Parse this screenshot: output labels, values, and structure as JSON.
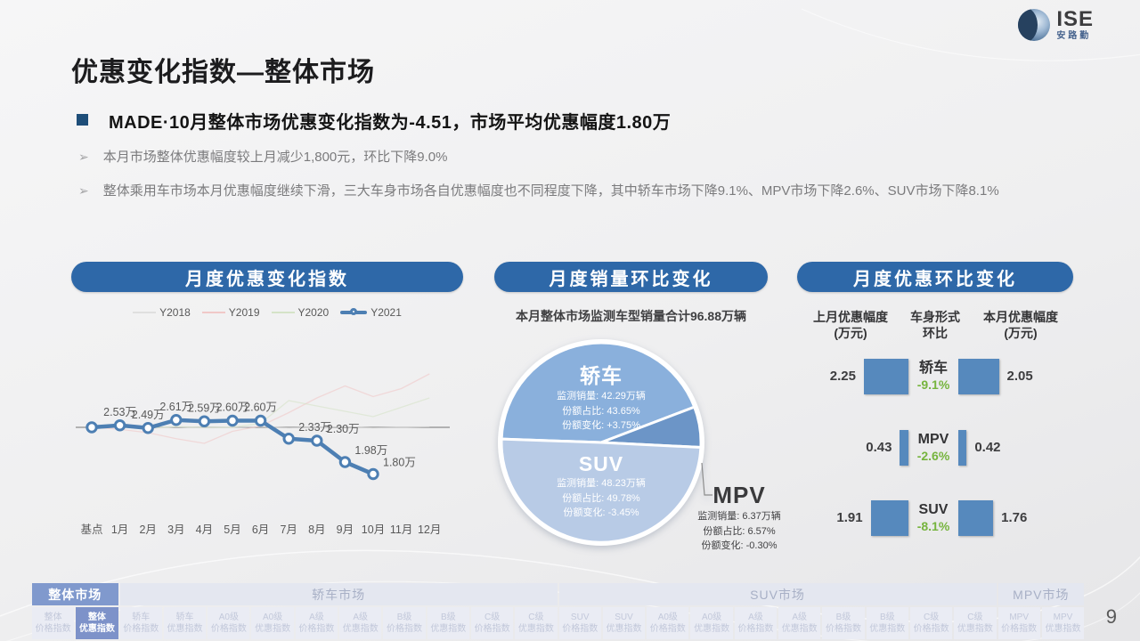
{
  "logo": {
    "text": "ISE",
    "subtext": "安路勤"
  },
  "slide": {
    "page_number": "9"
  },
  "header": {
    "title": "优惠变化指数—整体市场",
    "key_point": "MADE·10月整体市场优惠变化指数为-4.51，市场平均优惠幅度1.80万",
    "bullets": [
      "本月市场整体优惠幅度较上月减少1,800元，环比下降9.0%",
      "整体乘用车市场本月优惠幅度继续下滑，三大车身市场各自优惠幅度也不同程度下降，其中轿车市场下降9.1%、MPV市场下降2.6%、SUV市场下降8.1%"
    ]
  },
  "chart_data": [
    {
      "type": "line",
      "title": "月度优惠变化指数",
      "x": [
        "基点",
        "1月",
        "2月",
        "3月",
        "4月",
        "5月",
        "6月",
        "7月",
        "8月",
        "9月",
        "10月",
        "11月",
        "12月"
      ],
      "unit": "万",
      "baseline_value": 2.5,
      "series": [
        {
          "name": "Y2018",
          "color": "#dfdfdf",
          "values": [
            2.5,
            2.52,
            2.48,
            2.51,
            2.49,
            2.5,
            2.51,
            2.49,
            2.5,
            2.51,
            2.49,
            2.5,
            2.51
          ]
        },
        {
          "name": "Y2019",
          "color": "#f0c8c8",
          "values": [
            2.5,
            2.47,
            2.42,
            2.33,
            2.26,
            2.44,
            2.52,
            2.72,
            2.94,
            3.12,
            2.96,
            3.08,
            3.3
          ]
        },
        {
          "name": "Y2020",
          "color": "#d5e3c8",
          "values": [
            2.5,
            2.5,
            2.49,
            2.51,
            2.5,
            2.5,
            2.56,
            2.9,
            2.82,
            2.74,
            2.66,
            2.8,
            2.94
          ]
        },
        {
          "name": "Y2021",
          "color": "#4d7fb3",
          "values": [
            2.5,
            2.53,
            2.49,
            2.61,
            2.59,
            2.6,
            2.6,
            2.33,
            2.3,
            1.98,
            1.8
          ],
          "point_labels": [
            "",
            "2.53万",
            "2.49万",
            "2.61万",
            "2.59万",
            "2.60万",
            "2.60万",
            "2.33万",
            "2.30万",
            "1.98万",
            "1.80万"
          ]
        }
      ]
    },
    {
      "type": "pie",
      "title": "月度销量环比变化",
      "subtitle": "本月整体市场监测车型销量合计96.88万辆",
      "start_angle_deg": 272,
      "label_prefixes": {
        "sales": "监测销量:",
        "share": "份额占比:",
        "change": "份额变化:"
      },
      "slices": [
        {
          "name": "轿车",
          "value": 43.65,
          "color": "#8ab0dc",
          "sales": "42.29万辆",
          "share": "43.65%",
          "change": "+3.75%"
        },
        {
          "name": "MPV",
          "value": 6.57,
          "color": "#6c95c7",
          "sales": "6.37万辆",
          "share": "6.57%",
          "change": "-0.30%"
        },
        {
          "name": "SUV",
          "value": 49.78,
          "color": "#b8cbe6",
          "sales": "48.23万辆",
          "share": "49.78%",
          "change": "-3.45%"
        }
      ]
    },
    {
      "type": "bar",
      "title": "月度优惠环比变化",
      "col_headers": [
        {
          "line1": "上月优惠幅度",
          "line2": "(万元)"
        },
        {
          "line1": "车身形式",
          "line2": "环比"
        },
        {
          "line1": "本月优惠幅度",
          "line2": "(万元)"
        }
      ],
      "bar_color": "#5689bd",
      "change_color": "#76b43e",
      "rows": [
        {
          "name": "轿车",
          "prev": 2.25,
          "curr": 2.05,
          "change": "-9.1%"
        },
        {
          "name": "MPV",
          "prev": 0.43,
          "curr": 0.42,
          "change": "-2.6%"
        },
        {
          "name": "SUV",
          "prev": 1.91,
          "curr": 1.76,
          "change": "-8.1%"
        }
      ]
    }
  ],
  "bottom_nav": {
    "groups": [
      {
        "label": "整体市场",
        "active": true,
        "items": [
          {
            "line1": "整体",
            "line2": "价格指数",
            "active": false
          },
          {
            "line1": "整体",
            "line2": "优惠指数",
            "active": true
          }
        ]
      },
      {
        "label": "轿车市场",
        "active": false,
        "items": [
          {
            "line1": "轿车",
            "line2": "价格指数",
            "active": false
          },
          {
            "line1": "轿车",
            "line2": "优惠指数",
            "active": false
          },
          {
            "line1": "A0级",
            "line2": "价格指数",
            "active": false
          },
          {
            "line1": "A0级",
            "line2": "优惠指数",
            "active": false
          },
          {
            "line1": "A级",
            "line2": "价格指数",
            "active": false
          },
          {
            "line1": "A级",
            "line2": "优惠指数",
            "active": false
          },
          {
            "line1": "B级",
            "line2": "价格指数",
            "active": false
          },
          {
            "line1": "B级",
            "line2": "优惠指数",
            "active": false
          },
          {
            "line1": "C级",
            "line2": "价格指数",
            "active": false
          },
          {
            "line1": "C级",
            "line2": "优惠指数",
            "active": false
          }
        ]
      },
      {
        "label": "SUV市场",
        "active": false,
        "items": [
          {
            "line1": "SUV",
            "line2": "价格指数",
            "active": false
          },
          {
            "line1": "SUV",
            "line2": "优惠指数",
            "active": false
          },
          {
            "line1": "A0级",
            "line2": "价格指数",
            "active": false
          },
          {
            "line1": "A0级",
            "line2": "优惠指数",
            "active": false
          },
          {
            "line1": "A级",
            "line2": "价格指数",
            "active": false
          },
          {
            "line1": "A级",
            "line2": "优惠指数",
            "active": false
          },
          {
            "line1": "B级",
            "line2": "价格指数",
            "active": false
          },
          {
            "line1": "B级",
            "line2": "优惠指数",
            "active": false
          },
          {
            "line1": "C级",
            "line2": "价格指数",
            "active": false
          },
          {
            "line1": "C级",
            "line2": "优惠指数",
            "active": false
          }
        ]
      },
      {
        "label": "MPV市场",
        "active": false,
        "items": [
          {
            "line1": "MPV",
            "line2": "价格指数",
            "active": false
          },
          {
            "line1": "MPV",
            "line2": "优惠指数",
            "active": false
          }
        ]
      }
    ]
  }
}
